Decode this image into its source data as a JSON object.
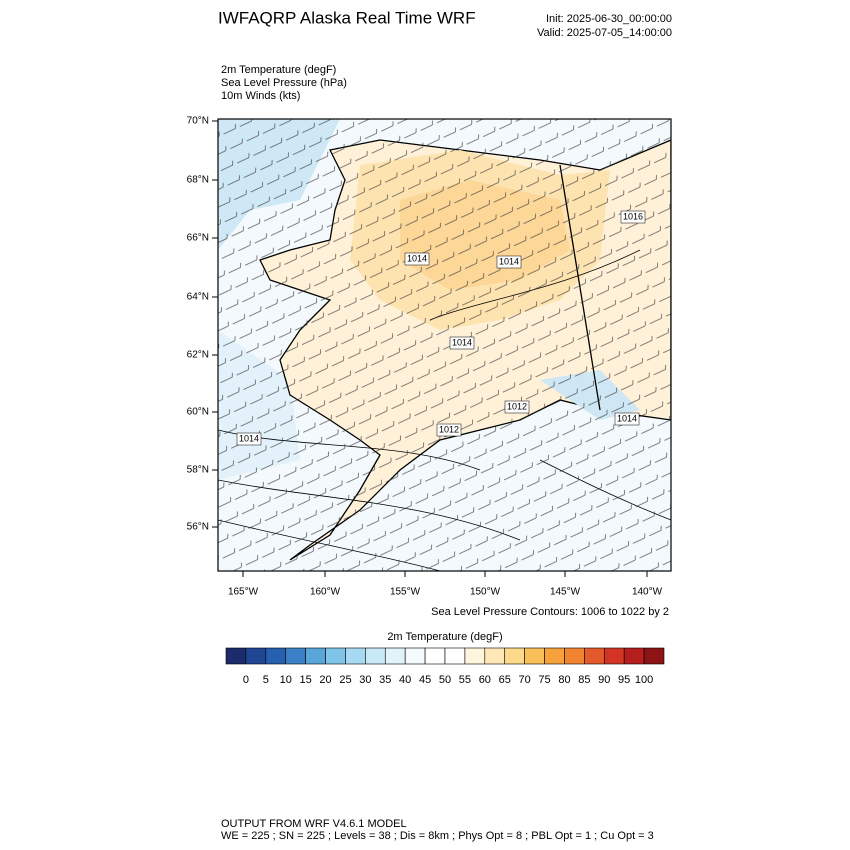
{
  "header": {
    "title": "IWFAQRP Alaska Real Time WRF",
    "init": "Init: 2025-06-30_00:00:00",
    "valid": "Valid: 2025-07-05_14:00:00"
  },
  "fields": [
    "2m Temperature   (degF)",
    "Sea Level Pressure   (hPa)",
    "10m Winds   (kts)"
  ],
  "map": {
    "lat_labels": [
      "70°N",
      "68°N",
      "66°N",
      "64°N",
      "62°N",
      "60°N",
      "58°N",
      "56°N"
    ],
    "lon_labels": [
      "165°W",
      "160°W",
      "155°W",
      "150°W",
      "145°W",
      "140°W"
    ],
    "contour_labels": [
      "1014",
      "1014",
      "1014",
      "1014",
      "1012",
      "1012",
      "1016",
      "1014"
    ]
  },
  "contour_note": "Sea Level Pressure Contours: 1006 to 1022 by 2",
  "colorbar": {
    "title": "2m Temperature  (degF)",
    "colors": [
      "#1b2b6b",
      "#1f4795",
      "#2660b0",
      "#3b80c6",
      "#5ba6d9",
      "#80c4ea",
      "#a7daf2",
      "#c8e9f6",
      "#e3f3fa",
      "#f3f9fc",
      "#ffffff",
      "#ffffff",
      "#fff4dc",
      "#fee8b8",
      "#fdd98a",
      "#fbbf5a",
      "#f7a13c",
      "#f28430",
      "#e55a2b",
      "#d33525",
      "#b51f1f",
      "#8c1414"
    ],
    "ticks": [
      0,
      5,
      10,
      15,
      20,
      25,
      30,
      35,
      40,
      45,
      50,
      55,
      60,
      65,
      70,
      75,
      80,
      85,
      90,
      95,
      100
    ]
  },
  "footer": {
    "line1": "OUTPUT FROM WRF V4.6.1 MODEL",
    "line2": "WE = 225 ; SN = 225 ; Levels = 38 ; Dis = 8km ; Phys Opt = 8 ; PBL Opt = 1 ; Cu Opt = 3"
  }
}
